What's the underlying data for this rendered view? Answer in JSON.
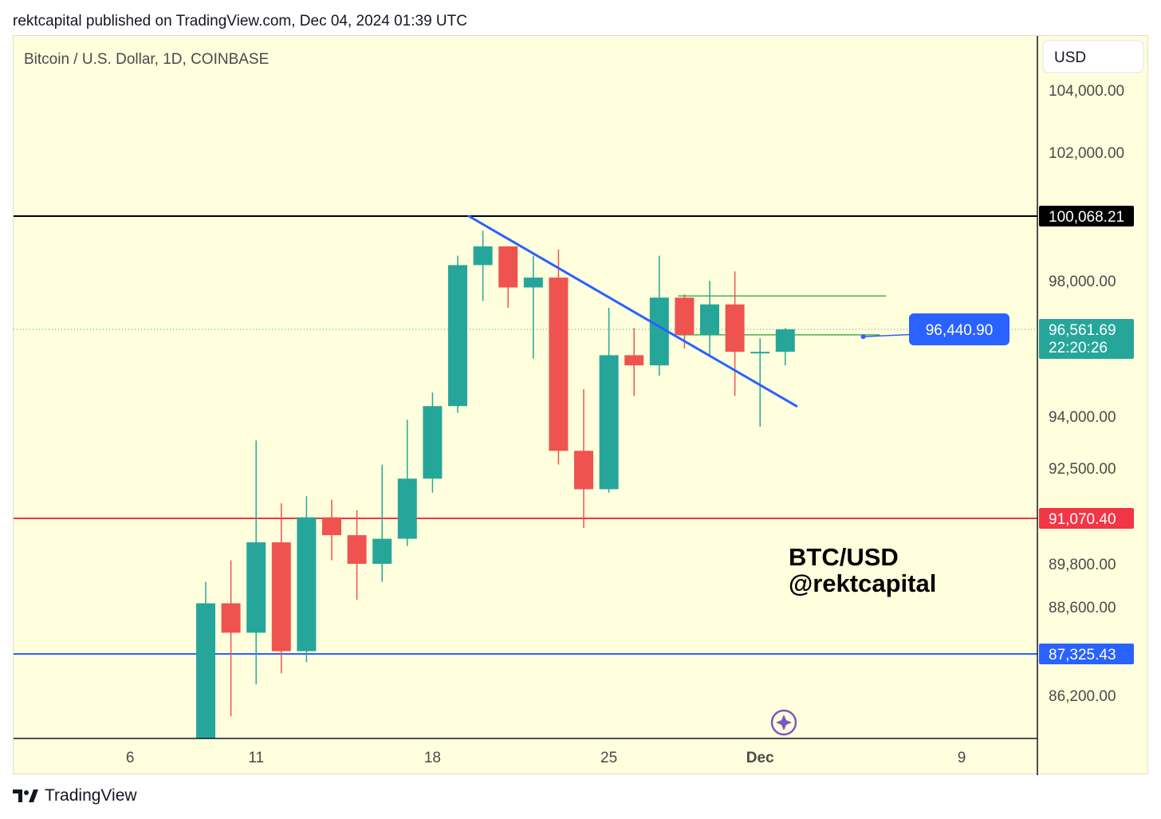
{
  "header": {
    "publisher_line": "rektcapital published on TradingView.com, Dec 04, 2024 01:39 UTC"
  },
  "chart_data": {
    "type": "candlestick",
    "title": "Bitcoin / U.S. Dollar, 1D, COINBASE",
    "currency_button": "USD",
    "watermark": [
      "BTC/USD",
      "@rektcapital"
    ],
    "y_tick_labels": [
      "104,000.00",
      "102,000.00",
      "98,000.00",
      "94,000.00",
      "92,500.00",
      "89,800.00",
      "88,600.00",
      "86,200.00"
    ],
    "x_tick_labels": [
      {
        "label": "6",
        "bar": -3,
        "bold": false
      },
      {
        "label": "11",
        "bar": 2,
        "bold": false
      },
      {
        "label": "18",
        "bar": 9,
        "bold": false
      },
      {
        "label": "25",
        "bar": 16,
        "bold": false
      },
      {
        "label": "Dec",
        "bar": 22,
        "bold": true
      },
      {
        "label": "9",
        "bar": 30,
        "bold": false
      }
    ],
    "candles": [
      {
        "date": "Nov 11",
        "open": 80500,
        "high": 89300,
        "low": 80000,
        "close": 88700
      },
      {
        "date": "Nov 12",
        "open": 88700,
        "high": 89900,
        "low": 85200,
        "close": 87900
      },
      {
        "date": "Nov 13",
        "open": 87900,
        "high": 93300,
        "low": 86500,
        "close": 90400
      },
      {
        "date": "Nov 14",
        "open": 90400,
        "high": 91500,
        "low": 86800,
        "close": 87400
      },
      {
        "date": "Nov 15",
        "open": 87400,
        "high": 91700,
        "low": 87100,
        "close": 91100
      },
      {
        "date": "Nov 16",
        "open": 91100,
        "high": 91600,
        "low": 89900,
        "close": 90600
      },
      {
        "date": "Nov 17",
        "open": 90600,
        "high": 91300,
        "low": 88800,
        "close": 89800
      },
      {
        "date": "Nov 18",
        "open": 89800,
        "high": 92600,
        "low": 89300,
        "close": 90500
      },
      {
        "date": "Nov 19",
        "open": 90500,
        "high": 93900,
        "low": 90300,
        "close": 92200
      },
      {
        "date": "Nov 20",
        "open": 92200,
        "high": 94700,
        "low": 91800,
        "close": 94300
      },
      {
        "date": "Nov 21",
        "open": 94300,
        "high": 98800,
        "low": 94100,
        "close": 98500
      },
      {
        "date": "Nov 22",
        "open": 98500,
        "high": 99600,
        "low": 97400,
        "close": 99100
      },
      {
        "date": "Nov 23",
        "open": 99100,
        "high": 99100,
        "low": 97200,
        "close": 97800
      },
      {
        "date": "Nov 24",
        "open": 97800,
        "high": 98800,
        "low": 95700,
        "close": 98100
      },
      {
        "date": "Nov 25",
        "open": 98100,
        "high": 99000,
        "low": 92600,
        "close": 93000
      },
      {
        "date": "Nov 26",
        "open": 93000,
        "high": 94800,
        "low": 90800,
        "close": 91900
      },
      {
        "date": "Nov 27",
        "open": 91900,
        "high": 97200,
        "low": 91800,
        "close": 95800
      },
      {
        "date": "Nov 28",
        "open": 95800,
        "high": 96600,
        "low": 94600,
        "close": 95500
      },
      {
        "date": "Nov 29",
        "open": 95500,
        "high": 98800,
        "low": 95200,
        "close": 97500
      },
      {
        "date": "Nov 30",
        "open": 97500,
        "high": 97600,
        "low": 96000,
        "close": 96400
      },
      {
        "date": "Dec 01",
        "open": 96400,
        "high": 98000,
        "low": 95800,
        "close": 97300
      },
      {
        "date": "Dec 02",
        "open": 97300,
        "high": 98300,
        "low": 94600,
        "close": 95900
      },
      {
        "date": "Dec 03",
        "open": 95900,
        "high": 96300,
        "low": 93700,
        "close": 95900
      },
      {
        "date": "Dec 04",
        "open": 95900,
        "high": 96600,
        "low": 95500,
        "close": 96561.69
      }
    ],
    "horizontal_levels": [
      {
        "value": 100068.21,
        "label": "100,068.21",
        "color": "#000000"
      },
      {
        "value": 91070.4,
        "label": "91,070.40",
        "color": "#f23645"
      },
      {
        "value": 87325.43,
        "label": "87,325.43",
        "color": "#2962ff"
      }
    ],
    "current_price": {
      "value": 96561.69,
      "label": "96,561.69",
      "countdown": "22:20:26",
      "color": "#26a69a"
    },
    "trendline": {
      "from": {
        "bar": 10,
        "value": 100068
      },
      "to": {
        "bar": 23,
        "value": 94300
      },
      "color": "#2962ff"
    },
    "range_box": {
      "from_bar": 19,
      "to_bar": 27,
      "top": 97550,
      "bottom": 96400,
      "color": "#4caf50"
    },
    "projection": {
      "from": {
        "bar": 26,
        "value": 96440.9
      },
      "to": {
        "bar": 29.6,
        "value": 96440.9
      },
      "label": "96,440.90",
      "color": "#2962ff"
    },
    "colors": {
      "up": "#26a69a",
      "down": "#ef5350",
      "background": "#ffffdd"
    }
  },
  "footer": {
    "brand": "TradingView"
  }
}
